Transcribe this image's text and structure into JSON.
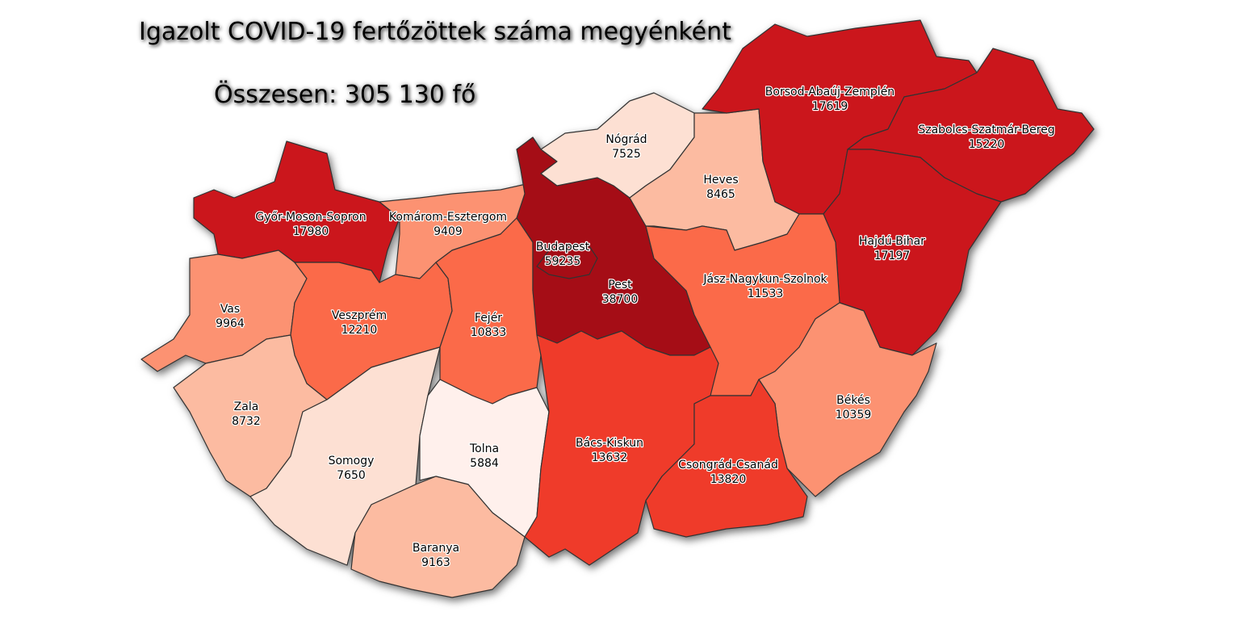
{
  "title": "Igazolt COVID-19 fertőzöttek száma megyénként",
  "total": "Összesen: 305 130 fő",
  "color_scale": [
    "#fff0ec",
    "#fde0d3",
    "#fcbba1",
    "#fc9272",
    "#fb6a4a",
    "#ef3b2c",
    "#cb181d",
    "#a50f15"
  ],
  "counties": [
    {
      "name": "Győr-Moson-Sopron",
      "value": 17980
    },
    {
      "name": "Komárom-Esztergom",
      "value": 9409
    },
    {
      "name": "Vas",
      "value": 9964
    },
    {
      "name": "Veszprém",
      "value": 12210
    },
    {
      "name": "Zala",
      "value": 8732
    },
    {
      "name": "Somogy",
      "value": 7650
    },
    {
      "name": "Fejér",
      "value": 10833
    },
    {
      "name": "Tolna",
      "value": 5884
    },
    {
      "name": "Baranya",
      "value": 9163
    },
    {
      "name": "Pest",
      "value": 38700
    },
    {
      "name": "Budapest",
      "value": 59235
    },
    {
      "name": "Nógrád",
      "value": 7525
    },
    {
      "name": "Heves",
      "value": 8465
    },
    {
      "name": "Borsod-Abaúj-Zemplén",
      "value": 17619
    },
    {
      "name": "Szabolcs-Szatmár-Bereg",
      "value": 15220
    },
    {
      "name": "Hajdú-Bihar",
      "value": 17197
    },
    {
      "name": "Jász-Nagykun-Szolnok",
      "value": 11533
    },
    {
      "name": "Békés",
      "value": 10359
    },
    {
      "name": "Bács-Kiskun",
      "value": 13632
    },
    {
      "name": "Csongrád-Csanád",
      "value": 13820
    }
  ]
}
